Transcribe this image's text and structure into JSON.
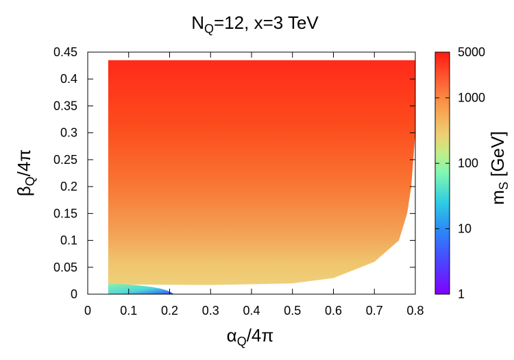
{
  "chart_data": {
    "type": "heatmap",
    "title": "N_Q=12, x=3 TeV",
    "xlabel": "α_Q/4π",
    "ylabel": "β_Q/4π",
    "colorbar_label": "m_S [GeV]",
    "xlim": [
      0,
      0.8
    ],
    "ylim": [
      0,
      0.45
    ],
    "x_ticks": [
      "0",
      "0.1",
      "0.2",
      "0.3",
      "0.4",
      "0.5",
      "0.6",
      "0.7",
      "0.8"
    ],
    "y_ticks": [
      "0",
      "0.05",
      "0.1",
      "0.15",
      "0.2",
      "0.25",
      "0.3",
      "0.35",
      "0.4",
      "0.45"
    ],
    "colorbar": {
      "scale": "log",
      "range": [
        1,
        5000
      ],
      "ticks": [
        "1",
        "10",
        "100",
        "1000",
        "5000"
      ],
      "colormap": "rainbow"
    },
    "region": {
      "alpha_min": 0.05,
      "beta_top": 0.435,
      "lower_boundary": [
        [
          0.05,
          0.018
        ],
        [
          0.3,
          0.017
        ],
        [
          0.5,
          0.02
        ],
        [
          0.6,
          0.03
        ],
        [
          0.7,
          0.06
        ],
        [
          0.76,
          0.1
        ],
        [
          0.78,
          0.15
        ],
        [
          0.79,
          0.2
        ],
        [
          0.795,
          0.25
        ],
        [
          0.8,
          0.3
        ]
      ],
      "corner_patch": {
        "alpha_range": [
          0.05,
          0.21
        ],
        "beta_max": 0.02,
        "min_mass_gev": 3
      }
    },
    "grid": false,
    "legend": "none"
  },
  "colors": {
    "gradient_top": "#ff2a1a",
    "gradient_bottom": "#efd07a",
    "corner_high": "#90f0a8",
    "corner_low": "#3050ff"
  }
}
